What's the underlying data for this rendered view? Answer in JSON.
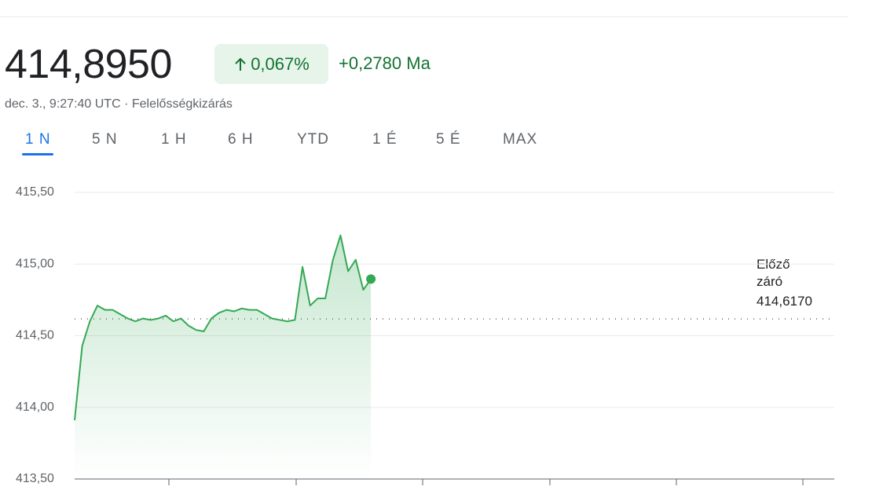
{
  "header": {
    "price": "414,8950",
    "change_percent": "0,067%",
    "change_abs": "+0,2780 Ma",
    "timestamp": "dec. 3., 9:27:40 UTC",
    "separator": "·",
    "disclaimer": "Felelősségkizárás"
  },
  "tabs": {
    "items": [
      "1 N",
      "5 N",
      "1 H",
      "6 H",
      "YTD",
      "1 É",
      "5 É",
      "MAX"
    ],
    "selected": 0
  },
  "chart_data": {
    "type": "line",
    "color": "#34a853",
    "values": [
      413.91,
      414.43,
      414.6,
      414.71,
      414.68,
      414.68,
      414.65,
      414.62,
      414.6,
      414.62,
      414.61,
      414.62,
      414.64,
      414.6,
      414.62,
      414.57,
      414.54,
      414.53,
      414.62,
      414.66,
      414.68,
      414.67,
      414.69,
      414.68,
      414.68,
      414.65,
      414.62,
      414.61,
      414.6,
      414.61,
      414.98,
      414.71,
      414.76,
      414.76,
      415.03,
      415.2,
      414.95,
      415.03,
      414.82,
      414.895,
      null,
      null,
      null,
      null,
      null,
      null,
      null,
      null,
      null,
      null,
      null,
      null,
      null,
      null,
      null,
      null,
      null,
      null,
      null,
      null,
      null,
      null,
      null,
      null,
      null,
      null,
      null,
      null,
      null,
      null,
      null,
      null,
      null,
      null,
      null,
      null,
      null,
      null,
      null,
      null,
      null,
      null,
      null,
      null,
      null,
      null,
      null,
      null,
      null,
      null,
      null,
      null,
      null,
      null,
      null,
      null,
      null,
      null,
      null,
      null,
      null
    ],
    "ylim": [
      413.5,
      415.5
    ],
    "yticks": [
      {
        "value": 413.5,
        "label": "413,50"
      },
      {
        "value": 414,
        "label": "414,00"
      },
      {
        "value": 414.5,
        "label": "414,50"
      },
      {
        "value": 415,
        "label": "415,00"
      },
      {
        "value": 415.5,
        "label": "415,50"
      }
    ],
    "grid": true,
    "previous_close_label": "Előző záró",
    "previous_close": {
      "value": 414.617,
      "label": "414,6170"
    }
  }
}
